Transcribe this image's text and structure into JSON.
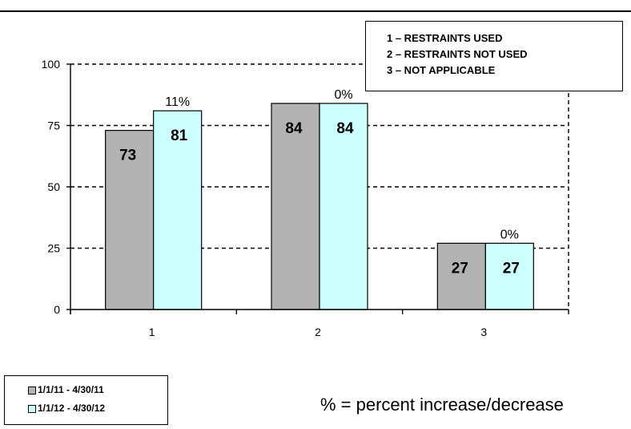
{
  "chart_data": {
    "type": "bar",
    "categories": [
      "1",
      "2",
      "3"
    ],
    "series": [
      {
        "name": "1/1/11 - 4/30/11",
        "values": [
          73,
          84,
          27
        ],
        "color": "#b2b2b2"
      },
      {
        "name": "1/1/12 - 4/30/12",
        "values": [
          81,
          84,
          27
        ],
        "color": "#ccffff"
      }
    ],
    "change_labels": [
      "11%",
      "0%",
      "0%"
    ],
    "ylim": [
      0,
      100
    ],
    "yticks": [
      0,
      25,
      50,
      75,
      100
    ],
    "grid": "dashed horizontal",
    "legend_position": "bottom-left",
    "title": "",
    "xlabel": "",
    "ylabel": ""
  },
  "category_key": {
    "items": [
      "1 – RESTRAINTS USED",
      "2 – RESTRAINTS NOT USED",
      "3 – NOT APPLICABLE"
    ]
  },
  "legend": {
    "items": [
      "1/1/11 - 4/30/11",
      "1/1/12 - 4/30/12"
    ]
  },
  "footnote": "% = percent increase/decrease",
  "colors": {
    "series1": "#b2b2b2",
    "series2": "#ccffff",
    "axis": "#000000"
  }
}
